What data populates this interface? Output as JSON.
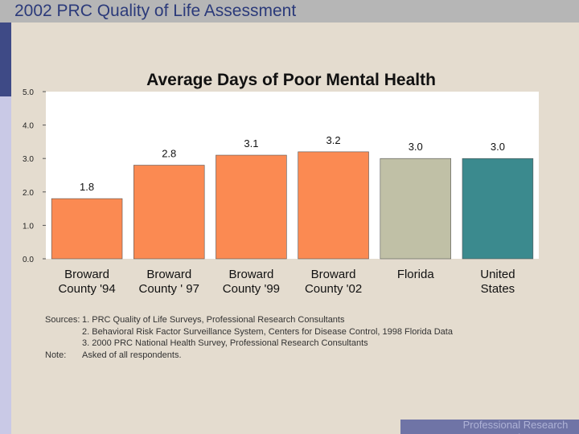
{
  "slide": {
    "title": "2002 PRC Quality of Life Assessment"
  },
  "chart_data": {
    "type": "bar",
    "title": "Average Days of Poor Mental Health",
    "categories": [
      [
        "Broward",
        "County '94"
      ],
      [
        "Broward",
        "County ' 97"
      ],
      [
        "Broward",
        "County '99"
      ],
      [
        "Broward",
        "County '02"
      ],
      [
        "Florida",
        ""
      ],
      [
        "United",
        "States"
      ]
    ],
    "values": [
      1.8,
      2.8,
      3.1,
      3.2,
      3.0,
      3.0
    ],
    "value_labels": [
      "1.8",
      "2.8",
      "3.1",
      "3.2",
      "3.0",
      "3.0"
    ],
    "bar_colors": [
      "#fb8a52",
      "#fb8a52",
      "#fb8a52",
      "#fb8a52",
      "#c0c0a6",
      "#3b8a8e"
    ],
    "ylim": [
      0,
      5
    ],
    "yticks": [
      "0.0",
      "1.0",
      "2.0",
      "3.0",
      "4.0",
      "5.0"
    ],
    "xlabel": "",
    "ylabel": "",
    "grid": false
  },
  "sources": [
    {
      "label": "Sources:",
      "text": "1. PRC Quality of Life Surveys, Professional Research Consultants"
    },
    {
      "label": "",
      "text": "2. Behavioral Risk Factor Surveillance System, Centers for Disease Control, 1998 Florida Data"
    },
    {
      "label": "",
      "text": "3. 2000 PRC National Health Survey, Professional Research Consultants"
    },
    {
      "label": "Note:",
      "text": "Asked of all respondents."
    }
  ],
  "footer": {
    "text": "Professional Research Consultants"
  }
}
